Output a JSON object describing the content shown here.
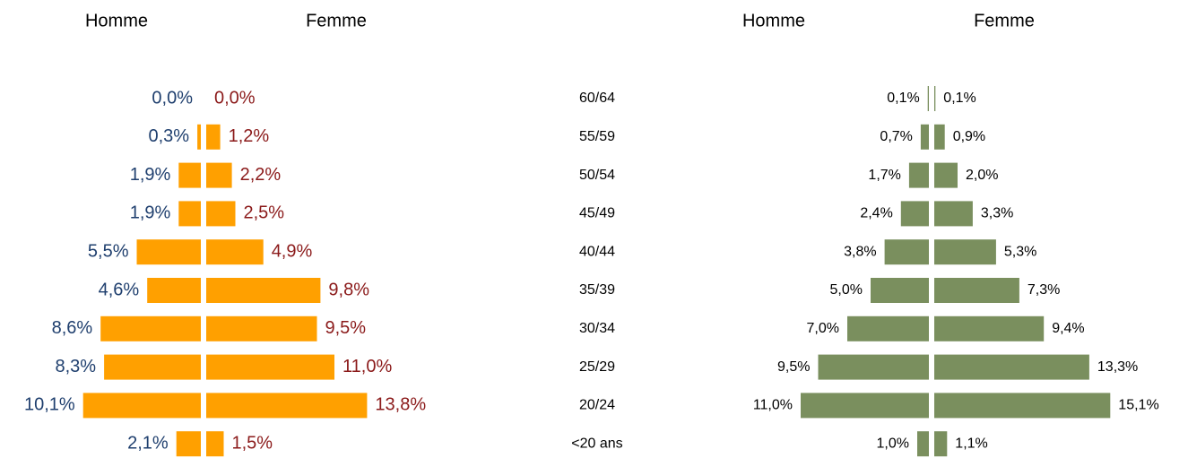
{
  "chart_data": {
    "type": "pyramid",
    "categories": [
      "60/64",
      "55/59",
      "50/54",
      "45/49",
      "40/44",
      "35/39",
      "30/34",
      "25/29",
      "20/24",
      "<20 ans"
    ],
    "panels": [
      {
        "series": [
          {
            "name": "Homme",
            "color": "#ffa000",
            "label_color": "#1f3f6e",
            "values": [
              0.0,
              0.3,
              1.9,
              1.9,
              5.5,
              4.6,
              8.6,
              8.3,
              10.1,
              2.1
            ],
            "value_labels": [
              "0,0%",
              "0,3%",
              "1,9%",
              "1,9%",
              "5,5%",
              "4,6%",
              "8,6%",
              "8,3%",
              "10,1%",
              "2,1%"
            ]
          },
          {
            "name": "Femme",
            "color": "#ffa000",
            "label_color": "#8b1a1a",
            "values": [
              0.0,
              1.2,
              2.2,
              2.5,
              4.9,
              9.8,
              9.5,
              11.0,
              13.8,
              1.5
            ],
            "value_labels": [
              "0,0%",
              "1,2%",
              "2,2%",
              "2,5%",
              "4,9%",
              "9,8%",
              "9,5%",
              "11,0%",
              "13,8%",
              "1,5%"
            ]
          }
        ]
      },
      {
        "series": [
          {
            "name": "Homme",
            "color": "#7a8f5e",
            "label_color": "#000000",
            "values": [
              0.1,
              0.7,
              1.7,
              2.4,
              3.8,
              5.0,
              7.0,
              9.5,
              11.0,
              1.0
            ],
            "value_labels": [
              "0,1%",
              "0,7%",
              "1,7%",
              "2,4%",
              "3,8%",
              "5,0%",
              "7,0%",
              "9,5%",
              "11,0%",
              "1,0%"
            ]
          },
          {
            "name": "Femme",
            "color": "#7a8f5e",
            "label_color": "#000000",
            "values": [
              0.1,
              0.9,
              2.0,
              3.3,
              5.3,
              7.3,
              9.4,
              13.3,
              15.1,
              1.1
            ],
            "value_labels": [
              "0,1%",
              "0,9%",
              "2,0%",
              "3,3%",
              "5,3%",
              "7,3%",
              "9,4%",
              "13,3%",
              "15,1%",
              "1,1%"
            ]
          }
        ]
      }
    ]
  }
}
